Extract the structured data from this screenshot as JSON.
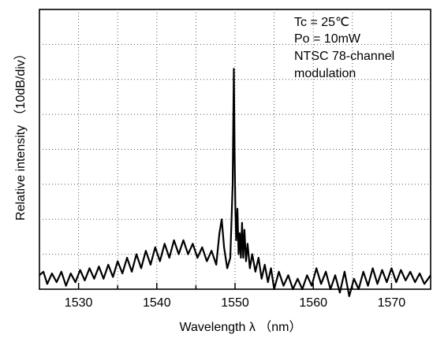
{
  "chart_data": {
    "type": "line",
    "xlabel": "Wavelength  λ  （nm）",
    "ylabel": "Relative  intensity  （10dB/div）",
    "xlim": [
      1525,
      1575
    ],
    "ylim": [
      0,
      8
    ],
    "x_ticks": [
      "1530",
      "1540",
      "1550",
      "1560",
      "1570"
    ],
    "grid": true,
    "grid_style": "dotted",
    "annotations": [
      "Tc = 25℃",
      "Po = 10mW",
      "NTSC 78-channel",
      "modulation"
    ],
    "series": [
      {
        "x": [
          1525.0,
          1525.5,
          1526.0,
          1526.6,
          1527.2,
          1527.8,
          1528.4,
          1529.0,
          1529.6,
          1530.2,
          1530.8,
          1531.4,
          1532.0,
          1532.6,
          1533.2,
          1533.8,
          1534.4,
          1535.0,
          1535.6,
          1536.2,
          1536.8,
          1537.4,
          1538.0,
          1538.6,
          1539.2,
          1539.8,
          1540.4,
          1541.0,
          1541.6,
          1542.2,
          1542.8,
          1543.4,
          1544.0,
          1544.6,
          1545.2,
          1545.8,
          1546.4,
          1547.0,
          1547.6,
          1548.0,
          1548.3,
          1548.6,
          1549.0,
          1549.4,
          1549.7,
          1549.85,
          1549.95,
          1550.05,
          1550.15,
          1550.3,
          1550.45,
          1550.6,
          1550.75,
          1550.9,
          1551.05,
          1551.2,
          1551.4,
          1551.6,
          1551.9,
          1552.2,
          1552.6,
          1553.0,
          1553.4,
          1553.8,
          1554.2,
          1554.6,
          1555.0,
          1555.6,
          1556.2,
          1556.8,
          1557.4,
          1558.0,
          1558.6,
          1559.2,
          1559.8,
          1560.4,
          1561.0,
          1561.6,
          1562.2,
          1562.8,
          1563.4,
          1564.0,
          1564.6,
          1565.2,
          1565.8,
          1566.4,
          1567.0,
          1567.6,
          1568.2,
          1568.8,
          1569.4,
          1570.0,
          1570.6,
          1571.2,
          1571.8,
          1572.4,
          1573.0,
          1573.6,
          1574.2,
          1575.0
        ],
        "y": [
          0.4,
          0.5,
          0.15,
          0.45,
          0.2,
          0.5,
          0.1,
          0.45,
          0.2,
          0.55,
          0.25,
          0.6,
          0.3,
          0.65,
          0.3,
          0.7,
          0.35,
          0.8,
          0.45,
          0.9,
          0.5,
          1.0,
          0.6,
          1.1,
          0.7,
          1.2,
          0.8,
          1.3,
          0.9,
          1.4,
          1.0,
          1.4,
          1.0,
          1.3,
          0.9,
          1.2,
          0.8,
          1.1,
          0.7,
          1.6,
          2.0,
          1.2,
          0.6,
          0.9,
          3.0,
          6.3,
          3.8,
          2.2,
          1.4,
          2.3,
          1.0,
          1.6,
          0.9,
          1.9,
          0.9,
          1.7,
          0.8,
          1.3,
          0.6,
          1.0,
          0.5,
          0.9,
          0.3,
          0.7,
          0.2,
          0.6,
          0.0,
          0.5,
          0.1,
          0.4,
          0.0,
          0.3,
          0.0,
          0.4,
          0.1,
          0.6,
          0.15,
          0.5,
          0.0,
          0.4,
          -0.1,
          0.5,
          -0.2,
          0.3,
          0.0,
          0.5,
          0.1,
          0.6,
          0.15,
          0.55,
          0.2,
          0.6,
          0.2,
          0.55,
          0.25,
          0.5,
          0.2,
          0.45,
          0.15,
          0.4
        ]
      }
    ]
  }
}
